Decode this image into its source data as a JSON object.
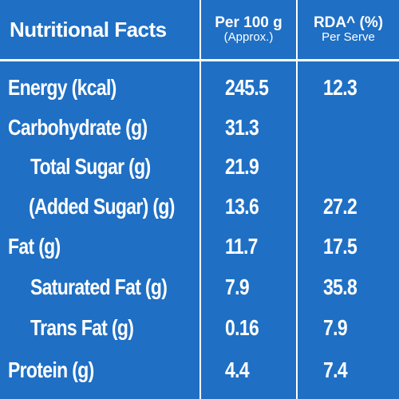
{
  "header": {
    "title": "Nutritional Facts",
    "col1_line1": "Per 100 g",
    "col1_line2": "(Approx.)",
    "col2_line1": "RDA^ (%)",
    "col2_line2": "Per Serve"
  },
  "rows": [
    {
      "label": "Energy (kcal)",
      "per100g": "245.5",
      "rda": "12.3"
    },
    {
      "label": "Carbohydrate (g)",
      "per100g": "31.3",
      "rda": ""
    },
    {
      "label": "Total Sugar (g)",
      "per100g": "21.9",
      "rda": ""
    },
    {
      "label": "(Added Sugar) (g)",
      "per100g": "13.6",
      "rda": "27.2"
    },
    {
      "label": "Fat (g)",
      "per100g": "11.7",
      "rda": "17.5"
    },
    {
      "label": "Saturated Fat (g)",
      "per100g": "7.9",
      "rda": "35.8"
    },
    {
      "label": "Trans Fat (g)",
      "per100g": "0.16",
      "rda": "7.9"
    },
    {
      "label": "Protein (g)",
      "per100g": "4.4",
      "rda": "7.4"
    }
  ],
  "colors": {
    "background": "#1f6fc4",
    "text": "#ffffff",
    "divider": "#ffffff"
  }
}
